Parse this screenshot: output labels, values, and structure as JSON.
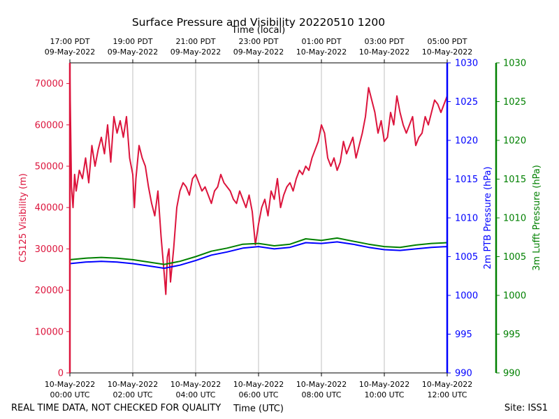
{
  "chart_data": {
    "type": "line",
    "title": "Surface Pressure and Visibility 20220510 1200",
    "top_axis_label": "Time (local)",
    "x_axis_label": "Time (UTC)",
    "footer_left": "REAL TIME DATA, NOT CHECKED FOR QUALITY",
    "footer_right": "Site: ISS1",
    "x_range_hours_utc": [
      0,
      12
    ],
    "top_ticks": [
      {
        "h": 0,
        "l1": "17:00 PDT",
        "l2": "09-May-2022"
      },
      {
        "h": 2,
        "l1": "19:00 PDT",
        "l2": "09-May-2022"
      },
      {
        "h": 4,
        "l1": "21:00 PDT",
        "l2": "09-May-2022"
      },
      {
        "h": 6,
        "l1": "23:00 PDT",
        "l2": "09-May-2022"
      },
      {
        "h": 8,
        "l1": "01:00 PDT",
        "l2": "10-May-2022"
      },
      {
        "h": 10,
        "l1": "03:00 PDT",
        "l2": "10-May-2022"
      },
      {
        "h": 12,
        "l1": "05:00 PDT",
        "l2": "10-May-2022"
      }
    ],
    "bottom_ticks": [
      {
        "h": 0,
        "l1": "10-May-2022",
        "l2": "00:00 UTC"
      },
      {
        "h": 2,
        "l1": "10-May-2022",
        "l2": "02:00 UTC"
      },
      {
        "h": 4,
        "l1": "10-May-2022",
        "l2": "04:00 UTC"
      },
      {
        "h": 6,
        "l1": "10-May-2022",
        "l2": "06:00 UTC"
      },
      {
        "h": 8,
        "l1": "10-May-2022",
        "l2": "08:00 UTC"
      },
      {
        "h": 10,
        "l1": "10-May-2022",
        "l2": "10:00 UTC"
      },
      {
        "h": 12,
        "l1": "10-May-2022",
        "l2": "12:00 UTC"
      }
    ],
    "grid_x": true,
    "axes": {
      "visibility": {
        "label": "CS125 Visibility (m)",
        "color": "#dc143c",
        "ylim": [
          0,
          75000
        ],
        "ticks": [
          0,
          10000,
          20000,
          30000,
          40000,
          50000,
          60000,
          70000
        ]
      },
      "ptb": {
        "label": "2m PTB Pressure (hPa)",
        "color": "#0000ff",
        "ylim": [
          990,
          1030
        ],
        "ticks": [
          990,
          995,
          1000,
          1005,
          1010,
          1015,
          1020,
          1025,
          1030
        ]
      },
      "lufft": {
        "label": "3m Lufft Pressure (hPa)",
        "color": "#008000",
        "ylim": [
          990,
          1030
        ],
        "ticks": [
          990,
          995,
          1000,
          1005,
          1010,
          1015,
          1020,
          1025,
          1030
        ]
      }
    },
    "series": [
      {
        "axis": "visibility",
        "color": "#dc143c",
        "x": [
          0.0,
          0.05,
          0.1,
          0.15,
          0.2,
          0.3,
          0.4,
          0.5,
          0.6,
          0.7,
          0.8,
          0.9,
          1.0,
          1.1,
          1.2,
          1.3,
          1.4,
          1.5,
          1.6,
          1.7,
          1.8,
          1.9,
          2.0,
          2.05,
          2.1,
          2.2,
          2.3,
          2.4,
          2.5,
          2.6,
          2.7,
          2.8,
          2.9,
          3.0,
          3.05,
          3.1,
          3.15,
          3.2,
          3.3,
          3.4,
          3.5,
          3.6,
          3.7,
          3.8,
          3.9,
          4.0,
          4.1,
          4.2,
          4.3,
          4.4,
          4.5,
          4.6,
          4.7,
          4.8,
          4.9,
          5.0,
          5.1,
          5.2,
          5.3,
          5.4,
          5.5,
          5.6,
          5.7,
          5.8,
          5.9,
          6.0,
          6.1,
          6.2,
          6.3,
          6.4,
          6.5,
          6.6,
          6.7,
          6.8,
          6.9,
          7.0,
          7.1,
          7.2,
          7.3,
          7.4,
          7.5,
          7.6,
          7.7,
          7.8,
          7.9,
          8.0,
          8.1,
          8.2,
          8.3,
          8.4,
          8.5,
          8.6,
          8.7,
          8.8,
          8.9,
          9.0,
          9.1,
          9.2,
          9.3,
          9.4,
          9.5,
          9.6,
          9.7,
          9.8,
          9.9,
          10.0,
          10.1,
          10.2,
          10.3,
          10.4,
          10.5,
          10.6,
          10.7,
          10.8,
          10.9,
          11.0,
          11.1,
          11.2,
          11.3,
          11.4,
          11.5,
          11.6,
          11.7,
          11.8,
          11.9,
          12.0
        ],
        "values": [
          72000,
          45000,
          40000,
          48000,
          44000,
          49000,
          47000,
          52000,
          46000,
          55000,
          50000,
          54000,
          57000,
          53000,
          60000,
          51000,
          62000,
          58000,
          61000,
          57000,
          62000,
          52000,
          48000,
          40000,
          47000,
          55000,
          52000,
          50000,
          45000,
          41000,
          38000,
          44000,
          33000,
          24000,
          19000,
          28000,
          30000,
          22000,
          30000,
          40000,
          44000,
          46000,
          45000,
          43000,
          47000,
          48000,
          46000,
          44000,
          45000,
          43000,
          41000,
          44000,
          45000,
          48000,
          46000,
          45000,
          44000,
          42000,
          41000,
          44000,
          42000,
          40000,
          43000,
          39000,
          31000,
          36000,
          40000,
          42000,
          38000,
          44000,
          42000,
          47000,
          40000,
          43000,
          45000,
          46000,
          44000,
          47000,
          49000,
          48000,
          50000,
          49000,
          52000,
          54000,
          56000,
          60000,
          58000,
          52000,
          50000,
          52000,
          49000,
          51000,
          56000,
          53000,
          55000,
          57000,
          52000,
          55000,
          58000,
          62000,
          69000,
          66000,
          63000,
          58000,
          61000,
          56000,
          57000,
          63000,
          60000,
          67000,
          63000,
          60000,
          58000,
          60000,
          62000,
          55000,
          57000,
          58000,
          62000,
          60000,
          63000,
          66000,
          65000,
          63000,
          65000,
          67000
        ]
      },
      {
        "axis": "ptb",
        "color": "#0000ff",
        "x": [
          0.0,
          0.5,
          1.0,
          1.5,
          2.0,
          2.5,
          3.0,
          3.5,
          4.0,
          4.5,
          5.0,
          5.5,
          6.0,
          6.5,
          7.0,
          7.5,
          8.0,
          8.5,
          9.0,
          9.5,
          10.0,
          10.5,
          11.0,
          11.5,
          12.0
        ],
        "values": [
          1004.1,
          1004.3,
          1004.4,
          1004.3,
          1004.1,
          1003.8,
          1003.5,
          1003.9,
          1004.5,
          1005.2,
          1005.6,
          1006.1,
          1006.3,
          1006.0,
          1006.2,
          1006.8,
          1006.7,
          1006.9,
          1006.6,
          1006.2,
          1005.9,
          1005.8,
          1006.0,
          1006.2,
          1006.3
        ]
      },
      {
        "axis": "lufft",
        "color": "#008000",
        "x": [
          0.0,
          0.5,
          1.0,
          1.5,
          2.0,
          2.5,
          3.0,
          3.5,
          4.0,
          4.5,
          5.0,
          5.5,
          6.0,
          6.5,
          7.0,
          7.5,
          8.0,
          8.5,
          9.0,
          9.5,
          10.0,
          10.5,
          11.0,
          11.5,
          12.0
        ],
        "values": [
          1004.6,
          1004.8,
          1004.9,
          1004.8,
          1004.6,
          1004.3,
          1004.0,
          1004.4,
          1005.0,
          1005.7,
          1006.1,
          1006.6,
          1006.7,
          1006.4,
          1006.6,
          1007.3,
          1007.1,
          1007.4,
          1007.0,
          1006.6,
          1006.3,
          1006.2,
          1006.5,
          1006.7,
          1006.8
        ]
      }
    ]
  }
}
